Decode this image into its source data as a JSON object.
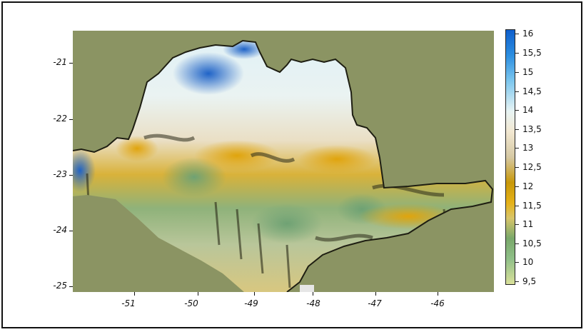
{
  "map": {
    "x_ticks": [
      "-51",
      "-50",
      "-49",
      "-48",
      "-47",
      "-46"
    ],
    "y_ticks": [
      "-21",
      "-22",
      "-23",
      "-24",
      "-25"
    ],
    "colorbar_ticks": [
      "16",
      "15,5",
      "15",
      "14,5",
      "14",
      "13,5",
      "13",
      "12,5",
      "12",
      "11,5",
      "11",
      "10,5",
      "10",
      "9,5"
    ],
    "colors": {
      "background": "#8b9463",
      "high": "#0f5fcc",
      "mid_high": "#e8f4f4",
      "mid": "#c8980a",
      "low": "#79a86a",
      "lowest": "#d9e09a"
    }
  }
}
